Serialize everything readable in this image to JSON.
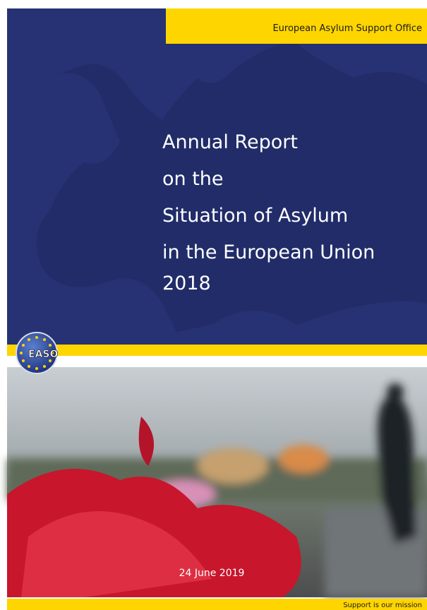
{
  "header": {
    "org": "European Asylum Support Office"
  },
  "title": {
    "lines": [
      "Annual Report",
      "on the",
      "Situation of Asylum",
      "in the European Union",
      "2018"
    ]
  },
  "logo": {
    "text": "EASO"
  },
  "date": "24 June 2019",
  "footer": {
    "tagline": "Support is our mission"
  }
}
